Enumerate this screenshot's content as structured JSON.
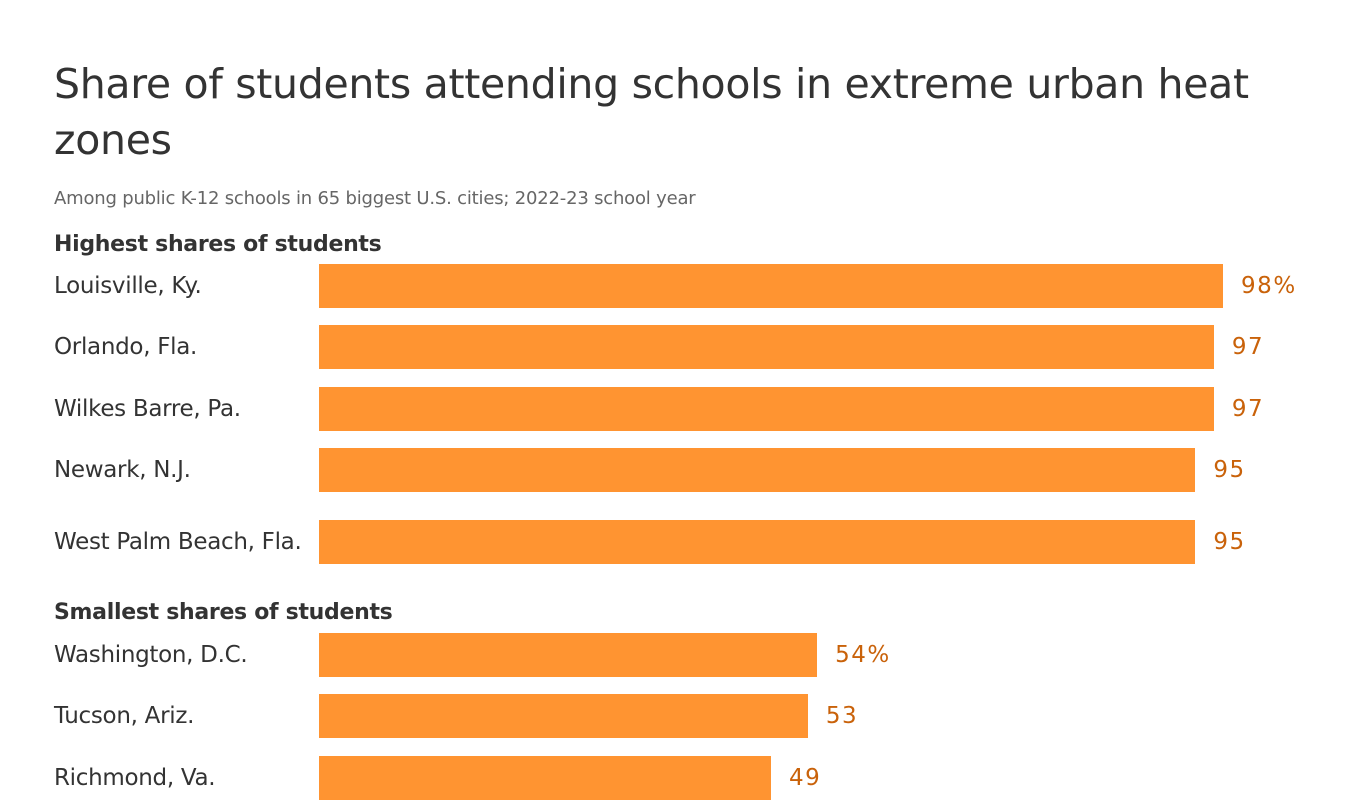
{
  "chart_data": {
    "type": "bar",
    "orientation": "horizontal",
    "title": "Share of students attending schools in extreme urban heat zones",
    "subtitle": "Among public K-12 schools in 65 biggest U.S. cities; 2022-23 school year",
    "xlim": [
      0,
      100
    ],
    "grid": false,
    "colors": {
      "bar": "#ff9431",
      "value_label": "#c9620a",
      "text": "#333333",
      "subtitle": "#666666"
    },
    "groups": [
      {
        "heading": "Highest shares of students",
        "categories": [
          "Louisville, Ky.",
          "Orlando, Fla.",
          "Wilkes Barre, Pa.",
          "Newark, N.J.",
          "West Palm Beach, Fla."
        ],
        "values": [
          98,
          97,
          97,
          95,
          95
        ],
        "value_labels": [
          "98%",
          "97",
          "97",
          "95",
          "95"
        ]
      },
      {
        "heading": "Smallest shares of students",
        "categories": [
          "Washington, D.C.",
          "Tucson, Ariz.",
          "Richmond, Va."
        ],
        "values": [
          54,
          53,
          49
        ],
        "value_labels": [
          "54%",
          "53",
          "49"
        ]
      }
    ]
  }
}
